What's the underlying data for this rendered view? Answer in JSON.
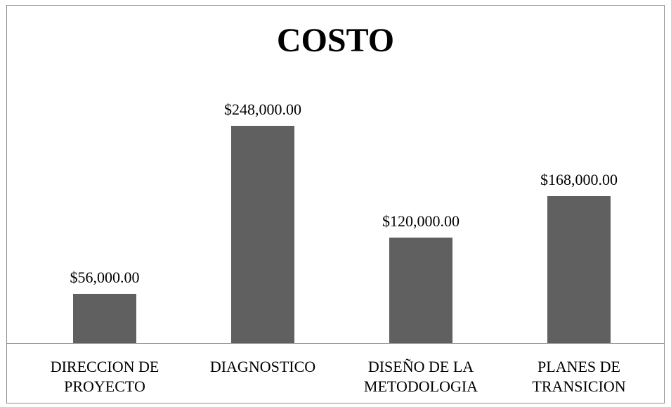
{
  "chart_data": {
    "type": "bar",
    "title": "COSTO",
    "categories": [
      "DIRECCION DE PROYECTO",
      "DIAGNOSTICO",
      "DISEÑO DE LA METODOLOGIA",
      "PLANES DE TRANSICION"
    ],
    "values": [
      56000,
      248000,
      120000,
      168000
    ],
    "value_labels": [
      "$56,000.00",
      "$248,000.00",
      "$120,000.00",
      "$168,000.00"
    ],
    "color": "#606060"
  }
}
